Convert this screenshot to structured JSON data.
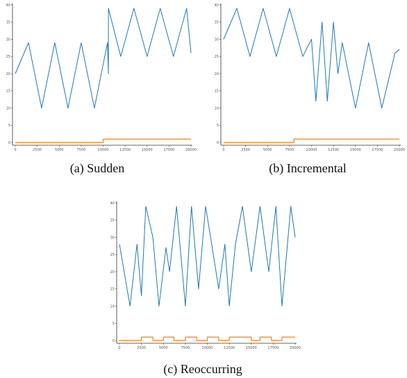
{
  "chart_data": [
    {
      "type": "line",
      "panel_id": "a",
      "caption": "(a)  Sudden",
      "x_ticks": [
        0,
        2500,
        5000,
        7500,
        10000,
        12500,
        15000,
        17500,
        20000
      ],
      "y_ticks": [
        0,
        5,
        10,
        15,
        20,
        25,
        30,
        35,
        40
      ],
      "xlim": [
        0,
        20000
      ],
      "ylim": [
        0,
        40
      ],
      "series": [
        {
          "color": "#1f77b4",
          "values": [
            [
              0,
              20
            ],
            [
              1500,
              29
            ],
            [
              3000,
              10
            ],
            [
              4500,
              29
            ],
            [
              6000,
              10
            ],
            [
              7500,
              29
            ],
            [
              9000,
              10
            ],
            [
              10500,
              29
            ],
            [
              10600,
              20
            ],
            [
              10600,
              39
            ],
            [
              12000,
              25
            ],
            [
              13500,
              39
            ],
            [
              15000,
              25
            ],
            [
              16500,
              39
            ],
            [
              18000,
              25
            ],
            [
              19500,
              39
            ],
            [
              20000,
              26
            ]
          ]
        },
        {
          "color": "#ff7f0e",
          "values": [
            [
              0,
              0
            ],
            [
              10000,
              0
            ],
            [
              10000,
              1
            ],
            [
              20000,
              1
            ]
          ]
        }
      ]
    },
    {
      "type": "line",
      "panel_id": "b",
      "caption": "(b)  Incremental",
      "x_ticks": [
        0,
        2500,
        5000,
        7500,
        10000,
        12500,
        15000,
        17500,
        20000
      ],
      "y_ticks": [
        0,
        5,
        10,
        15,
        20,
        25,
        30,
        35,
        40
      ],
      "xlim": [
        0,
        20000
      ],
      "ylim": [
        0,
        40
      ],
      "series": [
        {
          "color": "#1f77b4",
          "values": [
            [
              0,
              30
            ],
            [
              1500,
              39
            ],
            [
              3000,
              25
            ],
            [
              4500,
              39
            ],
            [
              6000,
              25
            ],
            [
              7500,
              39
            ],
            [
              9000,
              25
            ],
            [
              10000,
              30
            ],
            [
              10500,
              12
            ],
            [
              11200,
              35
            ],
            [
              11800,
              12
            ],
            [
              12500,
              35
            ],
            [
              13000,
              20
            ],
            [
              13500,
              29
            ],
            [
              15000,
              10
            ],
            [
              16500,
              29
            ],
            [
              18000,
              10
            ],
            [
              19500,
              26
            ],
            [
              20000,
              27
            ]
          ]
        },
        {
          "color": "#ff7f0e",
          "values": [
            [
              0,
              0
            ],
            [
              8000,
              0
            ],
            [
              8000,
              1
            ],
            [
              12000,
              1
            ],
            [
              12000,
              1
            ],
            [
              20000,
              1
            ]
          ]
        }
      ]
    },
    {
      "type": "line",
      "panel_id": "c",
      "caption": "(c)  Reoccurring",
      "x_ticks": [
        0,
        2500,
        5000,
        7500,
        10000,
        12500,
        15000,
        17500,
        20000
      ],
      "y_ticks": [
        0,
        5,
        10,
        15,
        20,
        25,
        30,
        35,
        40
      ],
      "xlim": [
        0,
        20000
      ],
      "ylim": [
        0,
        40
      ],
      "series": [
        {
          "color": "#1f77b4",
          "values": [
            [
              0,
              28
            ],
            [
              1200,
              10
            ],
            [
              2000,
              28
            ],
            [
              2500,
              13
            ],
            [
              3000,
              39
            ],
            [
              3800,
              30
            ],
            [
              4500,
              10
            ],
            [
              5300,
              27
            ],
            [
              5700,
              20
            ],
            [
              6500,
              39
            ],
            [
              7500,
              10
            ],
            [
              8200,
              39
            ],
            [
              9000,
              15
            ],
            [
              9800,
              39
            ],
            [
              10500,
              28
            ],
            [
              11300,
              15
            ],
            [
              12000,
              28
            ],
            [
              12500,
              10
            ],
            [
              13200,
              28
            ],
            [
              14000,
              39
            ],
            [
              15000,
              20
            ],
            [
              16000,
              39
            ],
            [
              17000,
              20
            ],
            [
              17800,
              39
            ],
            [
              18500,
              10
            ],
            [
              19500,
              39
            ],
            [
              20000,
              30
            ]
          ]
        },
        {
          "color": "#ff7f0e",
          "values": [
            [
              0,
              0
            ],
            [
              2500,
              0
            ],
            [
              2500,
              1
            ],
            [
              3800,
              1
            ],
            [
              3800,
              0
            ],
            [
              5000,
              0
            ],
            [
              5000,
              1
            ],
            [
              6200,
              1
            ],
            [
              6200,
              0
            ],
            [
              7500,
              0
            ],
            [
              7500,
              1
            ],
            [
              8800,
              1
            ],
            [
              8800,
              0
            ],
            [
              10000,
              0
            ],
            [
              10000,
              1
            ],
            [
              11300,
              1
            ],
            [
              11300,
              0
            ],
            [
              12500,
              0
            ],
            [
              12500,
              1
            ],
            [
              15000,
              1
            ],
            [
              15000,
              0
            ],
            [
              16000,
              0
            ],
            [
              16000,
              1
            ],
            [
              17300,
              1
            ],
            [
              17300,
              0
            ],
            [
              18500,
              0
            ],
            [
              18500,
              1
            ],
            [
              20000,
              1
            ]
          ]
        }
      ]
    }
  ]
}
